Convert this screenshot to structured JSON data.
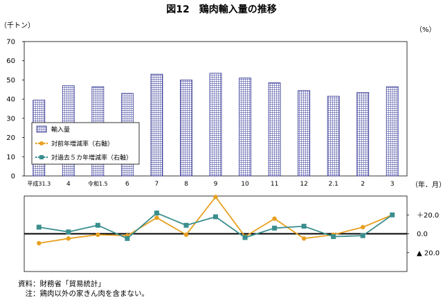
{
  "figure": {
    "title": "図12　鶏肉輸入量の推移",
    "left_unit": "（千トン）",
    "right_unit": "（%）",
    "x_unit": "（年．月）"
  },
  "chart_data": [
    {
      "type": "bar",
      "categories": [
        "平成31.3",
        "4",
        "令和1.5",
        "6",
        "7",
        "8",
        "9",
        "10",
        "11",
        "12",
        "2.1",
        "2",
        "3"
      ],
      "series": [
        {
          "name": "輸入量",
          "values": [
            39.5,
            47,
            46.5,
            43,
            53,
            50,
            53.5,
            51,
            48.5,
            44.5,
            41.5,
            43.5,
            46.5
          ],
          "color": "#2e3192",
          "pattern": "grid"
        }
      ],
      "ylim": [
        0,
        70
      ],
      "yticks": [
        0,
        10,
        20,
        30,
        40,
        50,
        60,
        70
      ],
      "grid": false,
      "legend": "lower-left"
    },
    {
      "type": "line",
      "categories": [
        "平成31.3",
        "4",
        "令和1.5",
        "6",
        "7",
        "8",
        "9",
        "10",
        "11",
        "12",
        "2.1",
        "2",
        "3"
      ],
      "series": [
        {
          "name": "対前年増減率（右軸）",
          "values": [
            -10,
            -5,
            -1,
            -2,
            17,
            -1,
            39,
            -3,
            16,
            -5,
            -1,
            7,
            20
          ],
          "color": "#e8a020",
          "marker": "circle"
        },
        {
          "name": "対過去５カ年増減率（右軸）",
          "values": [
            7,
            2,
            9,
            -5,
            22,
            9,
            18,
            -4,
            6,
            8,
            -3,
            -2,
            20
          ],
          "color": "#3b8e8e",
          "marker": "square"
        }
      ],
      "ylim": [
        -40,
        40
      ],
      "yticks": [
        20,
        0,
        -20
      ],
      "ytick_labels": [
        "＋20.0",
        "0.0",
        "▲ 20.0"
      ],
      "zero_line": true
    }
  ],
  "notes": {
    "source": "資料：財務省「貿易統計」",
    "note": "　注：鶏肉以外の家きん肉を含まない。"
  }
}
